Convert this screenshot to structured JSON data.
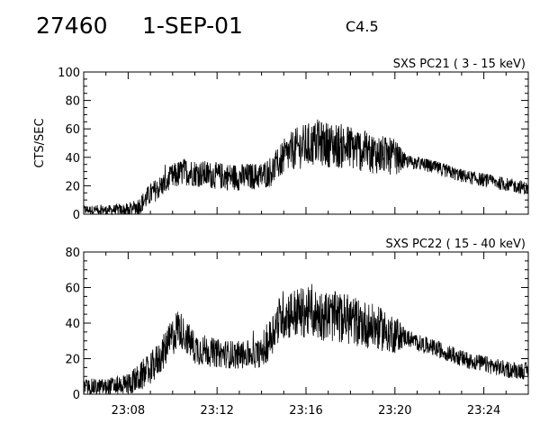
{
  "header": {
    "event_id": "27460",
    "date": "1-SEP-01",
    "flare_class": "C4.5"
  },
  "chart_data": [
    {
      "type": "line",
      "title": "SXS PC21  (  3 - 15 keV)",
      "xlabel": "",
      "ylabel": "CTS/SEC",
      "x_range_minutes": [
        "23:06",
        "23:26"
      ],
      "x_ticks": [
        "23:08",
        "23:12",
        "23:16",
        "23:20",
        "23:24"
      ],
      "ylim": [
        0,
        100
      ],
      "y_ticks": [
        0,
        20,
        40,
        60,
        80,
        100
      ],
      "grid": false,
      "series": [
        {
          "name": "",
          "color": "#000000",
          "t": [
            "23:06:00",
            "23:07:00",
            "23:08:00",
            "23:08:30",
            "23:09:00",
            "23:09:30",
            "23:10:00",
            "23:10:30",
            "23:11:00",
            "23:12:00",
            "23:13:00",
            "23:14:00",
            "23:14:30",
            "23:15:00",
            "23:15:30",
            "23:16:00",
            "23:16:30",
            "23:17:00",
            "23:18:00",
            "23:19:00",
            "23:20:00",
            "23:20:30",
            "23:21:00",
            "23:22:00",
            "23:23:00",
            "23:24:00",
            "23:25:00",
            "23:26:00"
          ],
          "values": [
            3,
            3,
            3,
            6,
            14,
            20,
            26,
            30,
            29,
            27,
            26,
            27,
            31,
            40,
            46,
            48,
            50,
            49,
            47,
            43,
            40,
            37,
            36,
            32,
            27,
            24,
            21,
            18
          ],
          "noise_amplitude": [
            2,
            2,
            3,
            4,
            5,
            5,
            6,
            6,
            6,
            6,
            6,
            6,
            7,
            8,
            9,
            10,
            10,
            10,
            10,
            9,
            8,
            3,
            3,
            3,
            3,
            3,
            3,
            3
          ]
        }
      ]
    },
    {
      "type": "line",
      "title": "SXS PC22  ( 15 - 40 keV)",
      "xlabel": "",
      "ylabel": "",
      "x_range_minutes": [
        "23:06",
        "23:26"
      ],
      "x_ticks": [
        "23:08",
        "23:12",
        "23:16",
        "23:20",
        "23:24"
      ],
      "ylim": [
        0,
        80
      ],
      "y_ticks": [
        0,
        20,
        40,
        60,
        80
      ],
      "grid": false,
      "series": [
        {
          "name": "",
          "color": "#000000",
          "t": [
            "23:06:00",
            "23:07:00",
            "23:08:00",
            "23:08:30",
            "23:09:00",
            "23:09:30",
            "23:10:00",
            "23:10:15",
            "23:10:30",
            "23:11:00",
            "23:12:00",
            "23:13:00",
            "23:14:00",
            "23:14:20",
            "23:14:40",
            "23:15:00",
            "23:16:00",
            "23:17:00",
            "23:18:00",
            "23:19:00",
            "23:20:00",
            "23:20:30",
            "23:21:00",
            "23:22:00",
            "23:23:00",
            "23:24:00",
            "23:25:00",
            "23:26:00"
          ],
          "values": [
            4,
            4,
            6,
            9,
            14,
            22,
            32,
            38,
            34,
            26,
            23,
            22,
            23,
            30,
            40,
            45,
            46,
            44,
            42,
            38,
            34,
            32,
            29,
            25,
            20,
            17,
            14,
            13
          ],
          "noise_amplitude": [
            3,
            3,
            4,
            5,
            6,
            6,
            7,
            7,
            6,
            6,
            5,
            5,
            5,
            7,
            8,
            9,
            9,
            9,
            9,
            8,
            7,
            3,
            3,
            3,
            3,
            3,
            3,
            3
          ]
        }
      ]
    }
  ]
}
